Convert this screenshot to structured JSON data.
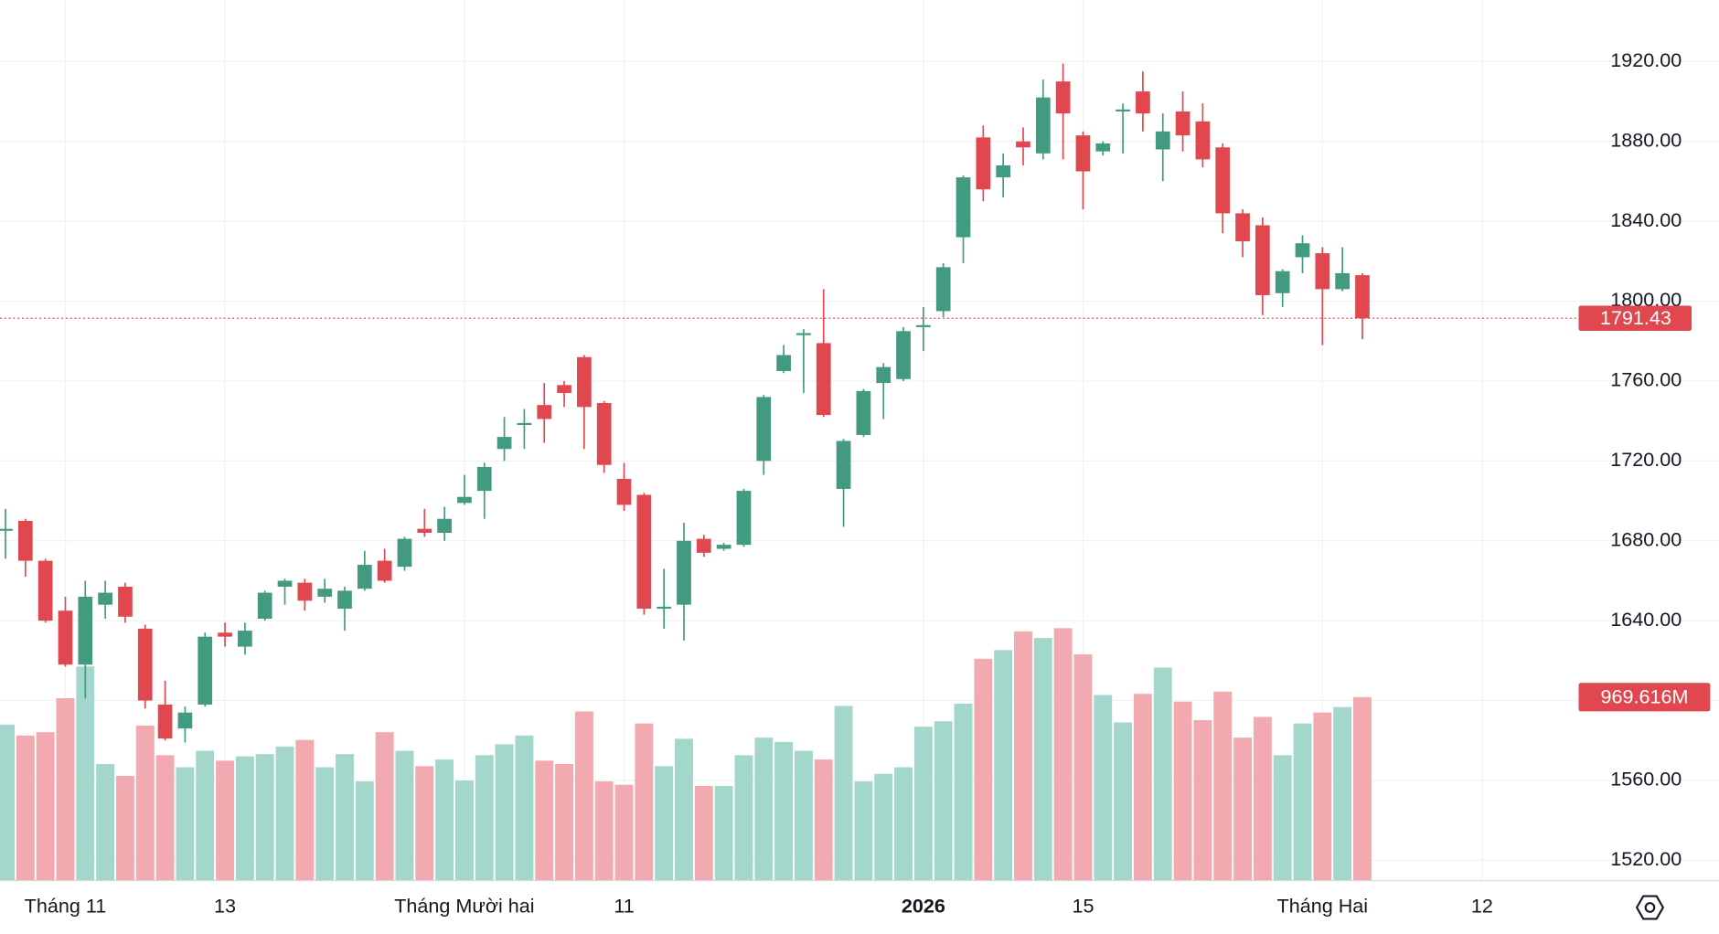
{
  "chart_data": {
    "type": "candlestick",
    "up_color": "#429a80",
    "down_color": "#e0474f",
    "volume_up_color": "#a3d7cb",
    "volume_down_color": "#f2a9b0",
    "open": [
      1685,
      1690,
      1670,
      1645,
      1618,
      1648,
      1657,
      1636,
      1598,
      1586,
      1598,
      1634,
      1627,
      1641,
      1657,
      1659,
      1652,
      1646,
      1656,
      1670,
      1667,
      1686,
      1684,
      1699,
      1705,
      1726,
      1738,
      1748,
      1758,
      1772,
      1749,
      1711,
      1703,
      1646,
      1648,
      1681,
      1676,
      1678,
      1720,
      1765,
      1783,
      1779,
      1706,
      1733,
      1759,
      1761,
      1787,
      1795,
      1832,
      1882,
      1862,
      1880,
      1874,
      1910,
      1883,
      1875,
      1895,
      1905,
      1876,
      1895,
      1890,
      1877,
      1844,
      1838,
      1804,
      1822,
      1824,
      1806,
      1813
    ],
    "high": [
      1696,
      1691,
      1671,
      1652,
      1660,
      1660,
      1659,
      1638,
      1610,
      1597,
      1634,
      1639,
      1639,
      1655,
      1661,
      1661,
      1661,
      1657,
      1675,
      1676,
      1682,
      1696,
      1697,
      1713,
      1719,
      1742,
      1746,
      1759,
      1760,
      1773,
      1750,
      1719,
      1704,
      1666,
      1689,
      1683,
      1679,
      1706,
      1753,
      1778,
      1786,
      1806,
      1731,
      1756,
      1769,
      1787,
      1797,
      1819,
      1863,
      1888,
      1874,
      1887,
      1911,
      1919,
      1885,
      1880,
      1899,
      1915,
      1894,
      1905,
      1899,
      1879,
      1846,
      1842,
      1816,
      1833,
      1827,
      1827,
      1814
    ],
    "low": [
      1671,
      1662,
      1639,
      1617,
      1601,
      1641,
      1639,
      1596,
      1580,
      1579,
      1597,
      1627,
      1623,
      1640,
      1648,
      1645,
      1649,
      1635,
      1655,
      1659,
      1665,
      1682,
      1680,
      1698,
      1691,
      1720,
      1726,
      1729,
      1747,
      1726,
      1714,
      1695,
      1643,
      1636,
      1630,
      1672,
      1675,
      1677,
      1713,
      1764,
      1754,
      1742,
      1687,
      1732,
      1741,
      1760,
      1775,
      1792,
      1819,
      1850,
      1852,
      1868,
      1871,
      1871,
      1846,
      1873,
      1874,
      1885,
      1860,
      1875,
      1867,
      1834,
      1822,
      1793,
      1797,
      1814,
      1778,
      1805,
      1781
    ],
    "close": [
      1686,
      1670,
      1640,
      1618,
      1652,
      1654,
      1642,
      1600,
      1581,
      1594,
      1632,
      1632,
      1635,
      1654,
      1660,
      1650,
      1656,
      1655,
      1668,
      1660,
      1681,
      1684,
      1691,
      1702,
      1717,
      1732,
      1739,
      1741,
      1754,
      1747,
      1718,
      1698,
      1646,
      1647,
      1680,
      1674,
      1678,
      1705,
      1752,
      1773,
      1784,
      1743,
      1730,
      1755,
      1767,
      1785,
      1788,
      1817,
      1862,
      1856,
      1868,
      1877,
      1902,
      1894,
      1865,
      1879,
      1896,
      1894,
      1885,
      1883,
      1871,
      1844,
      1830,
      1803,
      1815,
      1829,
      1806,
      1814,
      1791.43
    ],
    "volume": [
      824,
      766,
      784,
      964,
      1132,
      615,
      552,
      819,
      662,
      598,
      685,
      633,
      656,
      668,
      708,
      743,
      598,
      668,
      523,
      784,
      685,
      604,
      639,
      528,
      662,
      720,
      766,
      633,
      615,
      894,
      523,
      505,
      830,
      604,
      749,
      499,
      499,
      662,
      755,
      732,
      685,
      639,
      923,
      523,
      563,
      598,
      813,
      842,
      935,
      1173,
      1219,
      1318,
      1283,
      1335,
      1196,
      981,
      836,
      987,
      1126,
      946,
      848,
      999,
      755,
      865,
      662,
      830,
      888,
      917,
      969.616
    ],
    "volume_last_label": "969.616M",
    "xlim": [
      -0.275,
      78.4
    ],
    "xticks": [
      {
        "value": 3,
        "label": "Tháng 11"
      },
      {
        "value": 11,
        "label": "13"
      },
      {
        "value": 23,
        "label": "Tháng Mười hai"
      },
      {
        "value": 31,
        "label": "11"
      },
      {
        "value": 46,
        "label": "2026"
      },
      {
        "value": 54,
        "label": "15"
      },
      {
        "value": 66,
        "label": "Tháng Hai"
      },
      {
        "value": 74,
        "label": "12"
      }
    ],
    "emphasized_xtick": 4,
    "ylim": [
      1510.1,
      1950.7
    ],
    "yticks": [
      {
        "value": 1520,
        "label": "1520.00"
      },
      {
        "value": 1560,
        "label": "1560.00"
      },
      {
        "value": 1600,
        "label": "1600.00"
      },
      {
        "value": 1640,
        "label": "1640.00"
      },
      {
        "value": 1680,
        "label": "1680.00"
      },
      {
        "value": 1720,
        "label": "1720.00"
      },
      {
        "value": 1760,
        "label": "1760.00"
      },
      {
        "value": 1800,
        "label": "1800.00"
      },
      {
        "value": 1840,
        "label": "1840.00"
      },
      {
        "value": 1880,
        "label": "1880.00"
      },
      {
        "value": 1920,
        "label": "1920.00"
      }
    ],
    "volume_lim": [
      0,
      2000
    ],
    "grid": true
  }
}
